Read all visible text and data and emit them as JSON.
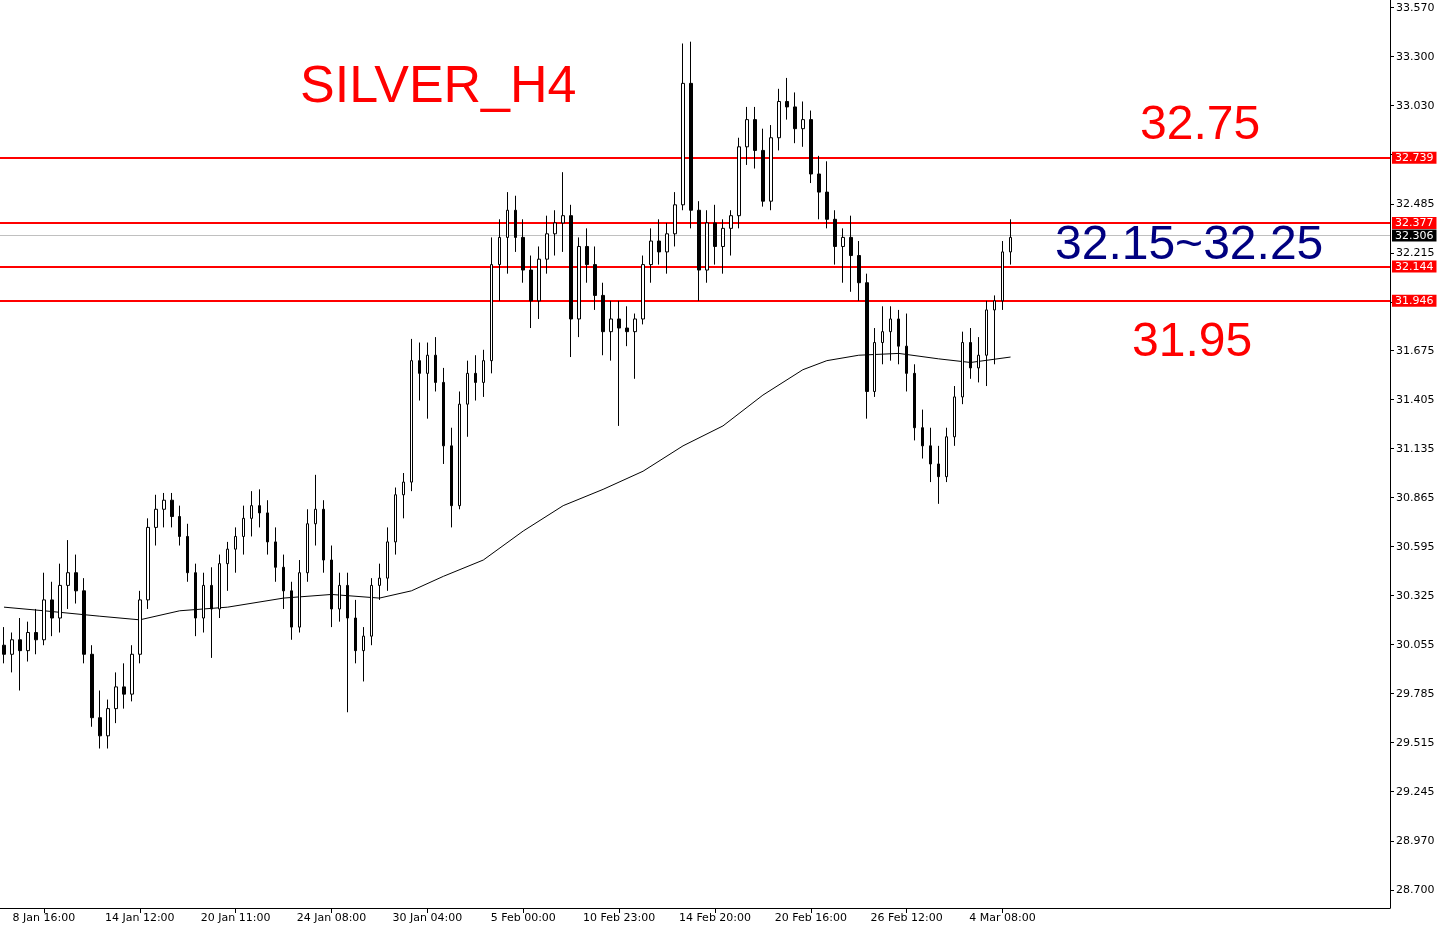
{
  "chart_data": {
    "type": "candlestick",
    "annotations": [
      "SILVER_H4",
      "32.75",
      "32.15~32.25",
      "31.95"
    ],
    "categories": [
      null,
      null,
      null,
      null,
      null,
      "8 Jan 16:00",
      null,
      null,
      null,
      null,
      null,
      null,
      null,
      null,
      null,
      null,
      null,
      "14 Jan 12:00",
      null,
      null,
      null,
      null,
      null,
      null,
      null,
      null,
      null,
      null,
      null,
      "20 Jan 11:00",
      null,
      null,
      null,
      null,
      null,
      null,
      null,
      null,
      null,
      null,
      null,
      "24 Jan 08:00",
      null,
      null,
      null,
      null,
      null,
      null,
      null,
      null,
      null,
      null,
      null,
      "30 Jan 04:00",
      null,
      null,
      null,
      null,
      null,
      null,
      null,
      null,
      null,
      null,
      null,
      "5 Feb 00:00",
      null,
      null,
      null,
      null,
      null,
      null,
      null,
      null,
      null,
      null,
      null,
      "10 Feb 23:00",
      null,
      null,
      null,
      null,
      null,
      null,
      null,
      null,
      null,
      null,
      null,
      "14 Feb 20:00",
      null,
      null,
      null,
      null,
      null,
      null,
      null,
      null,
      null,
      null,
      null,
      "20 Feb 16:00",
      null,
      null,
      null,
      null,
      null,
      null,
      null,
      null,
      null,
      null,
      null,
      "26 Feb 12:00",
      null,
      null,
      null,
      null,
      null,
      null,
      null,
      null,
      null,
      null,
      null,
      "4 Mar 08:00",
      null,
      null,
      null,
      null,
      null,
      null,
      null,
      null,
      null,
      null,
      null,
      null,
      null,
      null,
      null,
      null,
      null,
      null,
      null,
      null,
      null,
      null,
      null,
      null,
      null,
      null,
      null,
      null,
      null,
      null,
      null,
      null,
      null,
      null,
      null,
      null,
      null,
      null,
      null,
      null,
      null,
      null,
      null,
      null,
      null,
      null,
      null,
      null
    ],
    "ohlc": [
      [
        30.05,
        30.15,
        29.95,
        30.0
      ],
      [
        30.0,
        30.12,
        29.9,
        30.08
      ],
      [
        30.08,
        30.2,
        29.8,
        30.02
      ],
      [
        30.02,
        30.18,
        29.96,
        30.12
      ],
      [
        30.12,
        30.25,
        30.0,
        30.08
      ],
      [
        30.08,
        30.45,
        30.05,
        30.3
      ],
      [
        30.3,
        30.4,
        30.1,
        30.2
      ],
      [
        30.2,
        30.5,
        30.12,
        30.38
      ],
      [
        30.38,
        30.63,
        30.25,
        30.45
      ],
      [
        30.45,
        30.55,
        30.28,
        30.35
      ],
      [
        30.35,
        30.42,
        29.95,
        30.0
      ],
      [
        30.0,
        30.05,
        29.6,
        29.65
      ],
      [
        29.65,
        29.8,
        29.48,
        29.55
      ],
      [
        29.55,
        29.75,
        29.48,
        29.7
      ],
      [
        29.7,
        29.9,
        29.62,
        29.82
      ],
      [
        29.82,
        29.95,
        29.7,
        29.78
      ],
      [
        29.78,
        30.05,
        29.74,
        30.0
      ],
      [
        30.0,
        30.35,
        29.95,
        30.3
      ],
      [
        30.3,
        30.75,
        30.25,
        30.7
      ],
      [
        30.7,
        30.88,
        30.6,
        30.8
      ],
      [
        30.8,
        30.89,
        30.7,
        30.85
      ],
      [
        30.85,
        30.89,
        30.7,
        30.76
      ],
      [
        30.76,
        30.82,
        30.6,
        30.65
      ],
      [
        30.65,
        30.72,
        30.4,
        30.45
      ],
      [
        30.45,
        30.5,
        30.1,
        30.2
      ],
      [
        30.2,
        30.45,
        30.12,
        30.38
      ],
      [
        30.38,
        30.48,
        29.98,
        30.25
      ],
      [
        30.25,
        30.55,
        30.2,
        30.5
      ],
      [
        30.5,
        30.62,
        30.35,
        30.58
      ],
      [
        30.58,
        30.7,
        30.45,
        30.65
      ],
      [
        30.65,
        30.82,
        30.55,
        30.75
      ],
      [
        30.75,
        30.9,
        30.65,
        30.82
      ],
      [
        30.82,
        30.91,
        30.7,
        30.78
      ],
      [
        30.78,
        30.85,
        30.55,
        30.62
      ],
      [
        30.62,
        30.7,
        30.4,
        30.48
      ],
      [
        30.48,
        30.55,
        30.25,
        30.35
      ],
      [
        30.35,
        30.4,
        30.08,
        30.15
      ],
      [
        30.15,
        30.52,
        30.12,
        30.45
      ],
      [
        30.45,
        30.8,
        30.4,
        30.72
      ],
      [
        30.72,
        30.99,
        30.6,
        30.8
      ],
      [
        30.8,
        30.85,
        30.45,
        30.52
      ],
      [
        30.52,
        30.6,
        30.15,
        30.25
      ],
      [
        30.25,
        30.45,
        30.18,
        30.38
      ],
      [
        30.38,
        30.45,
        29.68,
        30.2
      ],
      [
        30.2,
        30.3,
        29.95,
        30.02
      ],
      [
        30.02,
        30.15,
        29.85,
        30.1
      ],
      [
        30.1,
        30.42,
        30.05,
        30.38
      ],
      [
        30.38,
        30.5,
        30.3,
        30.42
      ],
      [
        30.42,
        30.7,
        30.35,
        30.62
      ],
      [
        30.62,
        30.92,
        30.55,
        30.88
      ],
      [
        30.88,
        31.0,
        30.75,
        30.95
      ],
      [
        30.95,
        31.74,
        30.9,
        31.62
      ],
      [
        31.62,
        31.72,
        31.4,
        31.55
      ],
      [
        31.55,
        31.72,
        31.3,
        31.65
      ],
      [
        31.65,
        31.75,
        31.45,
        31.5
      ],
      [
        31.5,
        31.58,
        31.05,
        31.15
      ],
      [
        31.15,
        31.25,
        30.7,
        30.82
      ],
      [
        30.82,
        31.45,
        30.8,
        31.38
      ],
      [
        31.38,
        31.62,
        31.2,
        31.55
      ],
      [
        31.55,
        31.65,
        31.4,
        31.5
      ],
      [
        31.5,
        31.68,
        31.42,
        31.62
      ],
      [
        31.62,
        32.3,
        31.55,
        32.15
      ],
      [
        32.15,
        32.4,
        31.95,
        32.3
      ],
      [
        32.3,
        32.55,
        32.1,
        32.45
      ],
      [
        32.45,
        32.53,
        32.22,
        32.3
      ],
      [
        32.3,
        32.4,
        32.05,
        32.12
      ],
      [
        32.12,
        32.2,
        31.8,
        31.95
      ],
      [
        31.95,
        32.25,
        31.85,
        32.18
      ],
      [
        32.18,
        32.42,
        32.1,
        32.32
      ],
      [
        32.32,
        32.45,
        32.2,
        32.38
      ],
      [
        32.38,
        32.66,
        32.22,
        32.42
      ],
      [
        32.42,
        32.48,
        31.64,
        31.85
      ],
      [
        31.85,
        32.3,
        31.75,
        32.25
      ],
      [
        32.25,
        32.35,
        32.05,
        32.15
      ],
      [
        32.15,
        32.25,
        31.9,
        31.98
      ],
      [
        31.98,
        32.05,
        31.65,
        31.78
      ],
      [
        31.78,
        31.95,
        31.62,
        31.85
      ],
      [
        31.85,
        31.95,
        31.26,
        31.8
      ],
      [
        31.8,
        31.92,
        31.7,
        31.78
      ],
      [
        31.78,
        31.88,
        31.52,
        31.85
      ],
      [
        31.85,
        32.2,
        31.82,
        32.15
      ],
      [
        32.15,
        32.35,
        32.05,
        32.28
      ],
      [
        32.28,
        32.4,
        32.15,
        32.22
      ],
      [
        32.22,
        32.38,
        32.1,
        32.32
      ],
      [
        32.32,
        32.55,
        32.25,
        32.48
      ],
      [
        32.48,
        33.37,
        32.45,
        33.15
      ],
      [
        33.15,
        33.38,
        32.35,
        32.45
      ],
      [
        32.45,
        32.5,
        31.95,
        32.12
      ],
      [
        32.12,
        32.45,
        32.05,
        32.38
      ],
      [
        32.38,
        32.48,
        32.15,
        32.25
      ],
      [
        32.25,
        32.4,
        32.1,
        32.35
      ],
      [
        32.35,
        32.45,
        32.2,
        32.42
      ],
      [
        32.42,
        32.85,
        32.35,
        32.8
      ],
      [
        32.8,
        33.02,
        32.7,
        32.95
      ],
      [
        32.95,
        33.02,
        32.68,
        32.78
      ],
      [
        32.78,
        32.9,
        32.47,
        32.5
      ],
      [
        32.5,
        32.92,
        32.45,
        32.85
      ],
      [
        32.85,
        33.12,
        32.78,
        33.05
      ],
      [
        33.05,
        33.18,
        32.95,
        33.02
      ],
      [
        33.02,
        33.1,
        32.82,
        32.9
      ],
      [
        32.9,
        33.05,
        32.8,
        32.95
      ],
      [
        32.95,
        33.0,
        32.6,
        32.65
      ],
      [
        32.65,
        32.75,
        32.4,
        32.55
      ],
      [
        32.55,
        32.72,
        32.35,
        32.4
      ],
      [
        32.4,
        32.45,
        32.15,
        32.25
      ],
      [
        32.25,
        32.35,
        32.05,
        32.3
      ],
      [
        32.3,
        32.42,
        32.0,
        32.2
      ],
      [
        32.2,
        32.28,
        31.95,
        32.05
      ],
      [
        32.05,
        32.1,
        31.3,
        31.45
      ],
      [
        31.45,
        31.8,
        31.42,
        31.72
      ],
      [
        31.72,
        31.92,
        31.6,
        31.78
      ],
      [
        31.78,
        31.92,
        31.62,
        31.85
      ],
      [
        31.85,
        31.9,
        31.6,
        31.7
      ],
      [
        31.7,
        31.88,
        31.45,
        31.55
      ],
      [
        31.55,
        31.6,
        31.18,
        31.25
      ],
      [
        31.25,
        31.35,
        31.08,
        31.15
      ],
      [
        31.15,
        31.25,
        30.95,
        31.05
      ],
      [
        31.05,
        31.15,
        30.83,
        30.98
      ],
      [
        30.98,
        31.25,
        30.95,
        31.2
      ],
      [
        31.2,
        31.48,
        31.15,
        31.42
      ],
      [
        31.42,
        31.78,
        31.38,
        31.72
      ],
      [
        31.72,
        31.8,
        31.52,
        31.58
      ],
      [
        31.58,
        31.75,
        31.5,
        31.65
      ],
      [
        31.65,
        31.95,
        31.48,
        31.9
      ],
      [
        31.9,
        31.98,
        31.6,
        31.95
      ],
      [
        31.95,
        32.28,
        31.9,
        32.22
      ],
      [
        32.22,
        32.4,
        32.15,
        32.3
      ],
      null,
      null,
      null,
      null,
      null,
      null,
      null,
      null,
      null,
      null,
      null,
      null,
      null,
      null,
      null,
      null,
      null,
      null,
      null,
      null,
      null,
      null,
      null,
      null,
      null,
      null,
      null,
      null,
      null,
      null,
      null,
      null,
      null,
      null,
      null,
      null,
      null,
      null,
      null,
      null,
      null,
      null,
      null,
      null,
      null,
      null,
      null
    ],
    "series": [
      {
        "type": "line",
        "color": "#000000",
        "values": [
          30.26,
          null,
          null,
          null,
          null,
          30.24,
          null,
          null,
          null,
          null,
          null,
          null,
          30.21,
          null,
          null,
          null,
          null,
          30.19,
          null,
          null,
          null,
          null,
          30.24,
          null,
          null,
          null,
          null,
          null,
          30.26,
          null,
          null,
          null,
          null,
          null,
          null,
          30.31,
          null,
          null,
          null,
          null,
          null,
          30.33,
          null,
          null,
          null,
          null,
          null,
          30.31,
          null,
          null,
          null,
          30.35,
          null,
          null,
          null,
          30.43,
          null,
          null,
          null,
          null,
          30.52,
          null,
          null,
          null,
          null,
          30.68,
          null,
          null,
          null,
          null,
          30.82,
          null,
          null,
          null,
          null,
          30.91,
          null,
          null,
          null,
          null,
          31.01,
          null,
          null,
          null,
          null,
          31.15,
          null,
          null,
          null,
          null,
          31.26,
          null,
          null,
          null,
          null,
          31.43,
          null,
          null,
          null,
          null,
          31.57,
          null,
          null,
          31.62,
          null,
          null,
          null,
          31.65,
          null,
          null,
          null,
          null,
          31.66,
          null,
          null,
          null,
          null,
          31.63,
          null,
          null,
          null,
          31.61,
          null,
          null,
          null,
          null,
          31.64,
          null,
          null,
          null,
          null,
          null,
          null,
          null,
          null,
          null,
          null,
          null,
          null,
          null,
          null,
          null,
          null,
          null,
          null,
          null,
          null,
          null,
          null,
          null,
          null,
          null,
          null,
          null,
          null,
          null,
          null,
          null,
          null,
          null,
          null,
          null,
          null,
          null,
          null,
          null,
          null,
          null,
          null,
          null,
          null,
          null,
          null,
          null
        ]
      }
    ],
    "ylim": [
      28.6,
      33.61
    ],
    "yticks": [
      {
        "value": 28.7,
        "label": "28.700"
      },
      {
        "value": 28.97,
        "label": "28.970"
      },
      29.245,
      29.515,
      29.785,
      30.055,
      30.325,
      30.595,
      30.865,
      31.135,
      31.405,
      31.675,
      {
        "value": 31.945,
        "label": null
      },
      32.215,
      32.485,
      {
        "value": 32.76,
        "label": null
      },
      {
        "value": 33.03,
        "label": "33.030"
      },
      {
        "value": 33.3,
        "label": "33.300"
      },
      {
        "value": 33.57,
        "label": "33.570"
      }
    ],
    "ref_lines": [
      {
        "axis": "y",
        "value": 32.739,
        "label": "32.739",
        "color": "#ff0000"
      },
      {
        "axis": "y",
        "value": 32.377,
        "label": "32.377",
        "color": "#ff0000"
      },
      {
        "axis": "y",
        "value": 32.306,
        "label": "32.306",
        "color": "#c0c0c0"
      },
      {
        "axis": "y",
        "value": 32.144,
        "label": "32.144",
        "color": "#ff0000"
      },
      {
        "axis": "y",
        "value": 31.946,
        "label": "31.946",
        "color": "#ff0000"
      }
    ],
    "marker": "none",
    "grid": false
  }
}
